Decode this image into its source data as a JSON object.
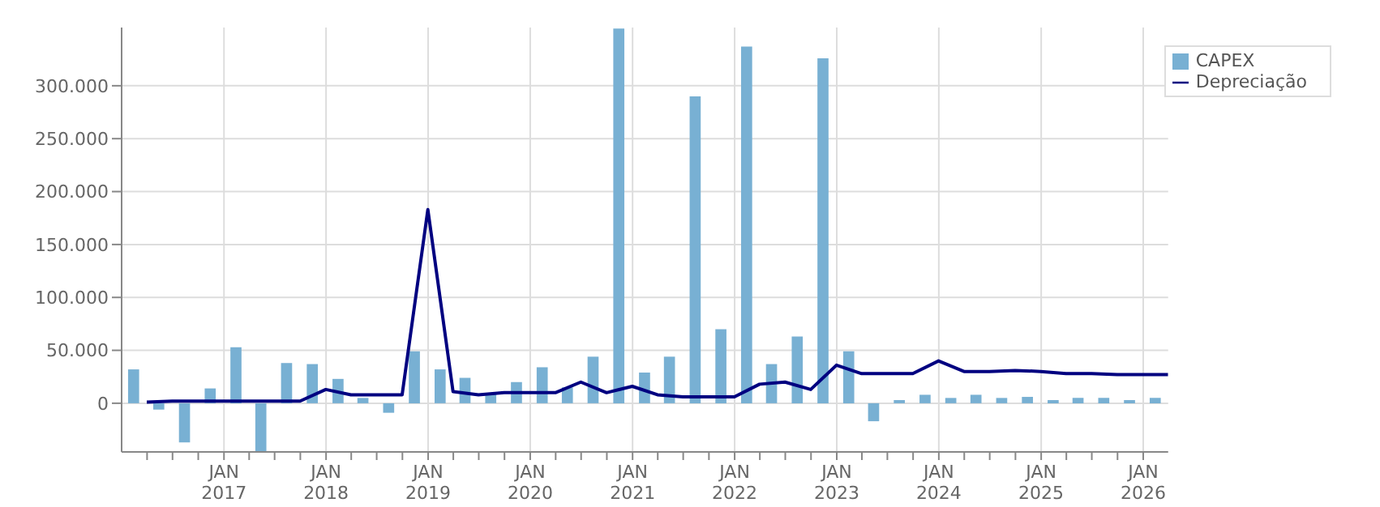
{
  "chart_data": {
    "type": "bar",
    "xlim": [
      "2016-01-01",
      "2026-03-31"
    ],
    "xticks": [
      {
        "value": "2016-04-01",
        "label": null
      },
      {
        "value": "2016-07-01",
        "label": null
      },
      {
        "value": "2016-10-01",
        "label": null
      },
      {
        "value": "2017-01-01",
        "label": "JAN 2017"
      },
      {
        "value": "2017-04-01",
        "label": null
      },
      {
        "value": "2017-07-01",
        "label": null
      },
      {
        "value": "2017-10-01",
        "label": null
      },
      {
        "value": "2018-01-01",
        "label": "JAN 2018"
      },
      {
        "value": "2018-04-01",
        "label": null
      },
      {
        "value": "2018-07-01",
        "label": null
      },
      {
        "value": "2018-10-01",
        "label": null
      },
      {
        "value": "2019-01-01",
        "label": "JAN 2019"
      },
      {
        "value": "2019-04-01",
        "label": null
      },
      {
        "value": "2019-07-01",
        "label": null
      },
      {
        "value": "2019-10-01",
        "label": null
      },
      {
        "value": "2020-01-01",
        "label": "JAN 2020"
      },
      {
        "value": "2020-04-01",
        "label": null
      },
      {
        "value": "2020-07-01",
        "label": null
      },
      {
        "value": "2020-10-01",
        "label": null
      },
      {
        "value": "2021-01-01",
        "label": "JAN 2021"
      },
      {
        "value": "2021-04-01",
        "label": null
      },
      {
        "value": "2021-07-01",
        "label": null
      },
      {
        "value": "2021-10-01",
        "label": null
      },
      {
        "value": "2022-01-01",
        "label": "JAN 2022"
      },
      {
        "value": "2022-04-01",
        "label": null
      },
      {
        "value": "2022-07-01",
        "label": null
      },
      {
        "value": "2022-10-01",
        "label": null
      },
      {
        "value": "2023-01-01",
        "label": "JAN 2023"
      },
      {
        "value": "2023-04-01",
        "label": null
      },
      {
        "value": "2023-07-01",
        "label": null
      },
      {
        "value": "2023-10-01",
        "label": null
      },
      {
        "value": "2024-01-01",
        "label": "JAN 2024"
      },
      {
        "value": "2024-04-01",
        "label": null
      },
      {
        "value": "2024-07-01",
        "label": null
      },
      {
        "value": "2024-10-01",
        "label": null
      },
      {
        "value": "2025-01-01",
        "label": "JAN 2025"
      },
      {
        "value": "2025-04-01",
        "label": null
      },
      {
        "value": "2025-07-01",
        "label": null
      },
      {
        "value": "2025-10-01",
        "label": null
      },
      {
        "value": "2026-01-01",
        "label": "JAN 2026"
      }
    ],
    "ylim": [
      -46000,
      355000
    ],
    "yticks": [
      {
        "value": 0,
        "label": "0"
      },
      {
        "value": 50000,
        "label": "50.000"
      },
      {
        "value": 100000,
        "label": "100.000"
      },
      {
        "value": 150000,
        "label": "150.000"
      },
      {
        "value": 200000,
        "label": "200.000"
      },
      {
        "value": 250000,
        "label": "250.000"
      },
      {
        "value": 300000,
        "label": "300.000"
      }
    ],
    "grid": true,
    "legend": "top right",
    "series": [
      {
        "name": "CAPEX",
        "color": "#78b0d3",
        "x": [
          "2016-02-15",
          "2016-05-15",
          "2016-08-15",
          "2016-11-15",
          "2017-02-15",
          "2017-05-15",
          "2017-08-15",
          "2017-11-15",
          "2018-02-15",
          "2018-05-15",
          "2018-08-15",
          "2018-11-15",
          "2019-02-15",
          "2019-05-15",
          "2019-08-15",
          "2019-11-15",
          "2020-02-15",
          "2020-05-15",
          "2020-08-15",
          "2020-11-15",
          "2021-02-15",
          "2021-05-15",
          "2021-08-15",
          "2021-11-15",
          "2022-02-15",
          "2022-05-15",
          "2022-08-15",
          "2022-11-15",
          "2023-02-15",
          "2023-05-15",
          "2023-08-15",
          "2023-11-15",
          "2024-02-15",
          "2024-05-15",
          "2024-08-15",
          "2024-11-15",
          "2025-02-15",
          "2025-05-15",
          "2025-08-15",
          "2025-11-15",
          "2026-02-15"
        ],
        "values": [
          32000,
          -6000,
          -37000,
          14000,
          53000,
          -46000,
          38000,
          37000,
          23000,
          5000,
          -9000,
          49000,
          32000,
          24000,
          9000,
          20000,
          34000,
          15000,
          44000,
          354000,
          29000,
          44000,
          290000,
          70000,
          337000,
          37000,
          63000,
          326000,
          49000,
          -17000,
          3000,
          8000,
          5000,
          8000,
          5000,
          6000,
          3000,
          5000,
          5000,
          3000,
          5000
        ]
      },
      {
        "name": "Depreciação",
        "type": "line",
        "color": "#000080",
        "marker": "none",
        "x": [
          "2016-03-31",
          "2016-06-30",
          "2016-09-30",
          "2016-12-31",
          "2017-03-31",
          "2017-06-30",
          "2017-09-30",
          "2017-12-31",
          "2018-03-31",
          "2018-06-30",
          "2018-09-30",
          "2018-12-31",
          "2019-03-31",
          "2019-06-30",
          "2019-09-30",
          "2019-12-31",
          "2020-03-31",
          "2020-06-30",
          "2020-09-30",
          "2020-12-31",
          "2021-03-31",
          "2021-06-30",
          "2021-09-30",
          "2021-12-31",
          "2022-03-31",
          "2022-06-30",
          "2022-09-30",
          "2022-12-31",
          "2023-03-31",
          "2023-06-30",
          "2023-09-30",
          "2023-12-31",
          "2024-03-31",
          "2024-06-30",
          "2024-09-30",
          "2024-12-31",
          "2025-03-31",
          "2025-06-30",
          "2025-09-30",
          "2025-12-31",
          "2026-03-31"
        ],
        "values": [
          1000,
          2000,
          2000,
          2000,
          2000,
          2000,
          2000,
          13000,
          8000,
          8000,
          8000,
          183000,
          11000,
          8000,
          10000,
          10000,
          10000,
          20000,
          10000,
          16000,
          8000,
          6000,
          6000,
          6000,
          18000,
          20000,
          13000,
          36000,
          28000,
          28000,
          28000,
          40000,
          30000,
          30000,
          31000,
          30000,
          28000,
          28000,
          27000,
          27000,
          27000
        ]
      }
    ]
  }
}
